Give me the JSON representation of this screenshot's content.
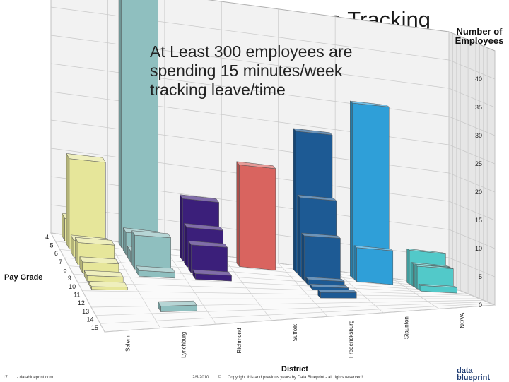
{
  "slide": {
    "title": "Monitization:  Time & Leave Tracking",
    "callout": [
      "At Least 300 employees are",
      "spending 15 minutes/week",
      "tracking leave/time"
    ],
    "footer": {
      "slide_number": "17",
      "site": "- datablueprint.com",
      "date": "2/5/2010",
      "page_marker": "©",
      "copyright": "Copyright this and previous years by Data Blueprint - all rights reserved!"
    },
    "logo": {
      "line1": "data",
      "line2": "blueprint"
    }
  },
  "chart_data": {
    "type": "bar",
    "title": "",
    "zlabel": "Number of Employees",
    "xlabel": "District",
    "ylabel": "Pay Grade",
    "zlim": [
      0,
      40
    ],
    "z_ticks": [
      0,
      5,
      10,
      15,
      20,
      25,
      30,
      35,
      40
    ],
    "districts": [
      "Salem",
      "Lynchburg",
      "Richmond",
      "Suffolk",
      "Fredericksburg",
      "Staunton",
      "NOVA"
    ],
    "district_labels_shown": [
      "Salem",
      "Lynchburg",
      "Richmond",
      "Suffolk",
      "Fredericksburg",
      "Staunton",
      "NOVA"
    ],
    "pay_grades": [
      "4",
      "5",
      "6",
      "7",
      "8",
      "9",
      "10",
      "11",
      "12",
      "13",
      "14",
      "15"
    ],
    "grid": true,
    "colors": {
      "Salem": "#e6e69a",
      "Lynchburg": "#8fbfbf",
      "Richmond": "#3b1f7a",
      "Suffolk": "#d9645f",
      "Fredericksburg": "#1d5a94",
      "Staunton": "#2f9fd8",
      "NOVA": "#52c9c9"
    },
    "series": [
      {
        "name": "Salem",
        "values": [
          4,
          16,
          3,
          4,
          2,
          1,
          0.5,
          0,
          0,
          0,
          0,
          0
        ]
      },
      {
        "name": "Lynchburg",
        "values": [
          47,
          4,
          2,
          6,
          1,
          0,
          0,
          0,
          0,
          1,
          0,
          0
        ]
      },
      {
        "name": "Richmond",
        "values": [
          0,
          11,
          7,
          5,
          1,
          0,
          0,
          0,
          0,
          0,
          0,
          0
        ]
      },
      {
        "name": "Suffolk",
        "values": [
          0,
          18,
          0,
          0,
          0,
          0,
          0,
          0,
          0,
          0,
          0,
          0
        ]
      },
      {
        "name": "Fredericksburg",
        "values": [
          0,
          25,
          14,
          8,
          1,
          0.5,
          0,
          1,
          0,
          0,
          0,
          0
        ]
      },
      {
        "name": "Staunton",
        "values": [
          0,
          31,
          6,
          0,
          0,
          0,
          0,
          0,
          0,
          0,
          0,
          0
        ]
      },
      {
        "name": "NOVA",
        "values": [
          0,
          6,
          4,
          4,
          1,
          0,
          0,
          0,
          0,
          0,
          0,
          0
        ]
      }
    ]
  }
}
